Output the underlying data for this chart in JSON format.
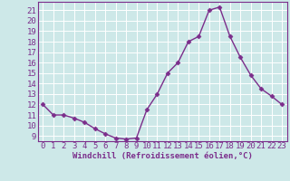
{
  "x": [
    0,
    1,
    2,
    3,
    4,
    5,
    6,
    7,
    8,
    9,
    10,
    11,
    12,
    13,
    14,
    15,
    16,
    17,
    18,
    19,
    20,
    21,
    22,
    23
  ],
  "y": [
    12,
    11,
    11,
    10.7,
    10.3,
    9.7,
    9.2,
    8.8,
    8.7,
    8.8,
    11.5,
    13,
    15,
    16,
    18,
    18.5,
    21,
    21.3,
    18.5,
    16.5,
    14.8,
    13.5,
    12.8,
    12
  ],
  "line_color": "#7b2d8b",
  "marker": "D",
  "marker_size": 2.5,
  "linewidth": 1.0,
  "bg_color": "#cde8e8",
  "grid_color": "#ffffff",
  "xlabel": "Windchill (Refroidissement éolien,°C)",
  "xlabel_color": "#7b2d8b",
  "tick_color": "#7b2d8b",
  "ylim": [
    8.5,
    21.8
  ],
  "xlim": [
    -0.5,
    23.5
  ],
  "yticks": [
    9,
    10,
    11,
    12,
    13,
    14,
    15,
    16,
    17,
    18,
    19,
    20,
    21
  ],
  "xticks": [
    0,
    1,
    2,
    3,
    4,
    5,
    6,
    7,
    8,
    9,
    10,
    11,
    12,
    13,
    14,
    15,
    16,
    17,
    18,
    19,
    20,
    21,
    22,
    23
  ],
  "tick_fontsize": 6.5,
  "xlabel_fontsize": 6.5
}
